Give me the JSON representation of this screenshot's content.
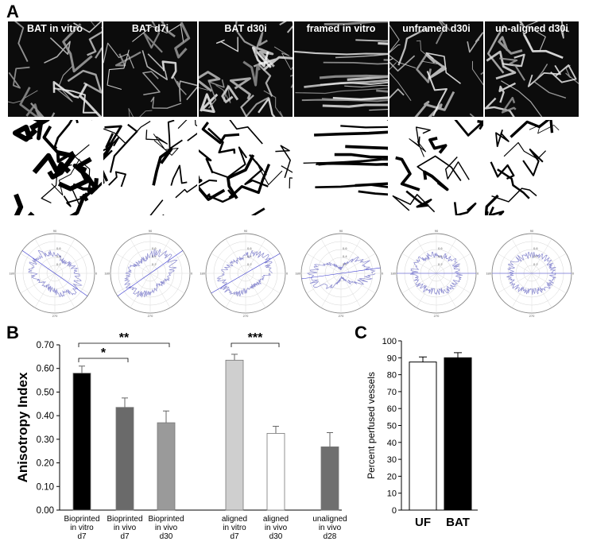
{
  "panels": {
    "a": "A",
    "b": "B",
    "c": "C"
  },
  "tiles": [
    {
      "label": "BAT in vitro"
    },
    {
      "label": "BAT d7i"
    },
    {
      "label": "BAT d30i"
    },
    {
      "label": "framed  in vitro"
    },
    {
      "label": "unframed d30i"
    },
    {
      "label": "un-aligned d30i"
    }
  ],
  "polar_labels": {
    "top": "90",
    "left": "180",
    "right": "0",
    "bottom": "270",
    "ring1": "0.2",
    "ring2": "0.4",
    "ring3": "0.6"
  },
  "colors": {
    "trace": "#8a8ad0",
    "axis": "#3a3ad0",
    "bar_black": "#000000",
    "bar_dark": "#6a6a6a",
    "bar_mid": "#9a9a9a",
    "bar_light": "#cfcfcf",
    "bar_white": "#ffffff",
    "bar_unaligned": "#6f6f6f"
  },
  "chart_data": [
    {
      "type": "bar",
      "ylabel": "Anisotropy Index",
      "ylim": [
        0,
        0.7
      ],
      "yticks": [
        "0.00",
        "0.10",
        "0.20",
        "0.30",
        "0.40",
        "0.50",
        "0.60",
        "0.70"
      ],
      "categories": [
        [
          "Bioprinted",
          "in vitro",
          "d7"
        ],
        [
          "Bioprinted",
          "in vivo",
          "d7"
        ],
        [
          "Bioprinted",
          "in vivo",
          "d30"
        ],
        [
          "aligned",
          "in vitro",
          "d7"
        ],
        [
          "aligned",
          "in vivo",
          "d30"
        ],
        [
          "unaligned",
          "in vivo",
          "d28"
        ]
      ],
      "values": [
        0.58,
        0.435,
        0.37,
        0.635,
        0.325,
        0.268
      ],
      "errors": [
        0.03,
        0.04,
        0.05,
        0.025,
        0.03,
        0.06
      ],
      "colors": [
        "#000000",
        "#6a6a6a",
        "#9a9a9a",
        "#cfcfcf",
        "#ffffff",
        "#6f6f6f"
      ],
      "annotations": [
        {
          "text": "**",
          "from": 0,
          "to": 2
        },
        {
          "text": "*",
          "from": 0,
          "to": 1
        },
        {
          "text": "***",
          "from": 3,
          "to": 4
        }
      ]
    },
    {
      "type": "bar",
      "ylabel": "Percent perfused vessels",
      "ylim": [
        0,
        100
      ],
      "yticks": [
        "0",
        "10",
        "20",
        "30",
        "40",
        "50",
        "60",
        "70",
        "80",
        "90",
        "100"
      ],
      "categories": [
        "UF",
        "BAT"
      ],
      "values": [
        87.5,
        90
      ],
      "errors": [
        3,
        3
      ],
      "colors": [
        "#ffffff",
        "#000000"
      ]
    }
  ]
}
